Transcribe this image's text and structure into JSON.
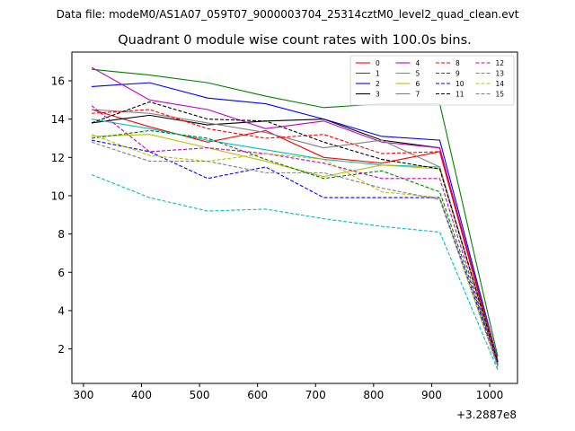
{
  "figure": {
    "suptitle": "Data file: modeM0/AS1A07_059T07_9000003704_25314cztM0_level2_quad_clean.evt"
  },
  "chart_data": {
    "type": "line",
    "title": "Quadrant 0 module wise count rates with 100.0s bins.",
    "xlabel": "",
    "ylabel": "",
    "x_offset_label": "+3.2887e8",
    "xlim": [
      280,
      1048
    ],
    "ylim": [
      0.2,
      17.5
    ],
    "x_ticks": [
      300,
      400,
      500,
      600,
      700,
      800,
      900,
      1000
    ],
    "x_tick_labels": [
      "300",
      "400",
      "500",
      "600",
      "700",
      "800",
      "900",
      "1000"
    ],
    "y_ticks": [
      2,
      4,
      6,
      8,
      10,
      12,
      14,
      16
    ],
    "y_tick_labels": [
      "2",
      "4",
      "6",
      "8",
      "10",
      "12",
      "14",
      "16"
    ],
    "grid": false,
    "legend_position": "top-right",
    "x": [
      314,
      414,
      514,
      614,
      714,
      814,
      914,
      1014
    ],
    "series": [
      {
        "name": "0",
        "color": "#ff0000",
        "dash": "solid",
        "values": [
          14.5,
          13.6,
          12.8,
          13.4,
          12.0,
          11.7,
          12.3,
          1.2
        ]
      },
      {
        "name": "1",
        "color": "#008000",
        "dash": "solid",
        "values": [
          16.6,
          16.3,
          15.9,
          15.2,
          14.6,
          14.8,
          14.8,
          1.6
        ]
      },
      {
        "name": "2",
        "color": "#0000ff",
        "dash": "solid",
        "values": [
          15.7,
          15.9,
          15.1,
          14.8,
          14.0,
          13.1,
          12.9,
          1.4
        ]
      },
      {
        "name": "3",
        "color": "#000000",
        "dash": "solid",
        "values": [
          13.8,
          14.2,
          13.7,
          13.9,
          14.0,
          12.9,
          12.5,
          1.3
        ]
      },
      {
        "name": "4",
        "color": "#c000c0",
        "dash": "solid",
        "values": [
          16.7,
          15.0,
          14.5,
          13.5,
          13.9,
          12.8,
          12.5,
          1.3
        ]
      },
      {
        "name": "5",
        "color": "#00bfbf",
        "dash": "solid",
        "values": [
          14.0,
          13.5,
          12.9,
          12.4,
          11.9,
          11.6,
          11.5,
          1.1
        ]
      },
      {
        "name": "6",
        "color": "#bfbf00",
        "dash": "solid",
        "values": [
          13.1,
          13.2,
          12.5,
          11.8,
          11.0,
          11.6,
          11.4,
          1.2
        ]
      },
      {
        "name": "7",
        "color": "#808080",
        "dash": "solid",
        "values": [
          14.5,
          14.3,
          13.8,
          13.3,
          12.5,
          12.9,
          11.5,
          1.3
        ]
      },
      {
        "name": "8",
        "color": "#ff0000",
        "dash": "dashed",
        "values": [
          14.3,
          14.5,
          13.5,
          13.0,
          13.2,
          12.2,
          12.3,
          1.4
        ]
      },
      {
        "name": "9",
        "color": "#008000",
        "dash": "dashed",
        "values": [
          13.0,
          13.4,
          13.0,
          11.9,
          10.9,
          11.3,
          10.2,
          1.3
        ]
      },
      {
        "name": "10",
        "color": "#0000ff",
        "dash": "dashed",
        "values": [
          12.9,
          12.3,
          10.9,
          11.5,
          9.9,
          9.9,
          9.9,
          1.2
        ]
      },
      {
        "name": "11",
        "color": "#000000",
        "dash": "dashed",
        "values": [
          13.8,
          14.9,
          14.0,
          13.9,
          12.8,
          11.9,
          11.4,
          1.3
        ]
      },
      {
        "name": "12",
        "color": "#c000c0",
        "dash": "dashed",
        "values": [
          14.7,
          12.3,
          12.5,
          12.2,
          11.7,
          10.9,
          10.9,
          1.1
        ]
      },
      {
        "name": "13",
        "color": "#00bfbf",
        "dash": "dashed",
        "values": [
          11.1,
          9.9,
          9.2,
          9.3,
          8.8,
          8.4,
          8.1,
          0.9
        ]
      },
      {
        "name": "14",
        "color": "#bfbf00",
        "dash": "dashed",
        "values": [
          13.2,
          12.1,
          11.8,
          12.2,
          11.9,
          10.2,
          9.9,
          1.0
        ]
      },
      {
        "name": "15",
        "color": "#808080",
        "dash": "dashed",
        "values": [
          12.8,
          11.8,
          11.8,
          11.2,
          11.2,
          10.4,
          9.8,
          1.1
        ]
      }
    ]
  }
}
